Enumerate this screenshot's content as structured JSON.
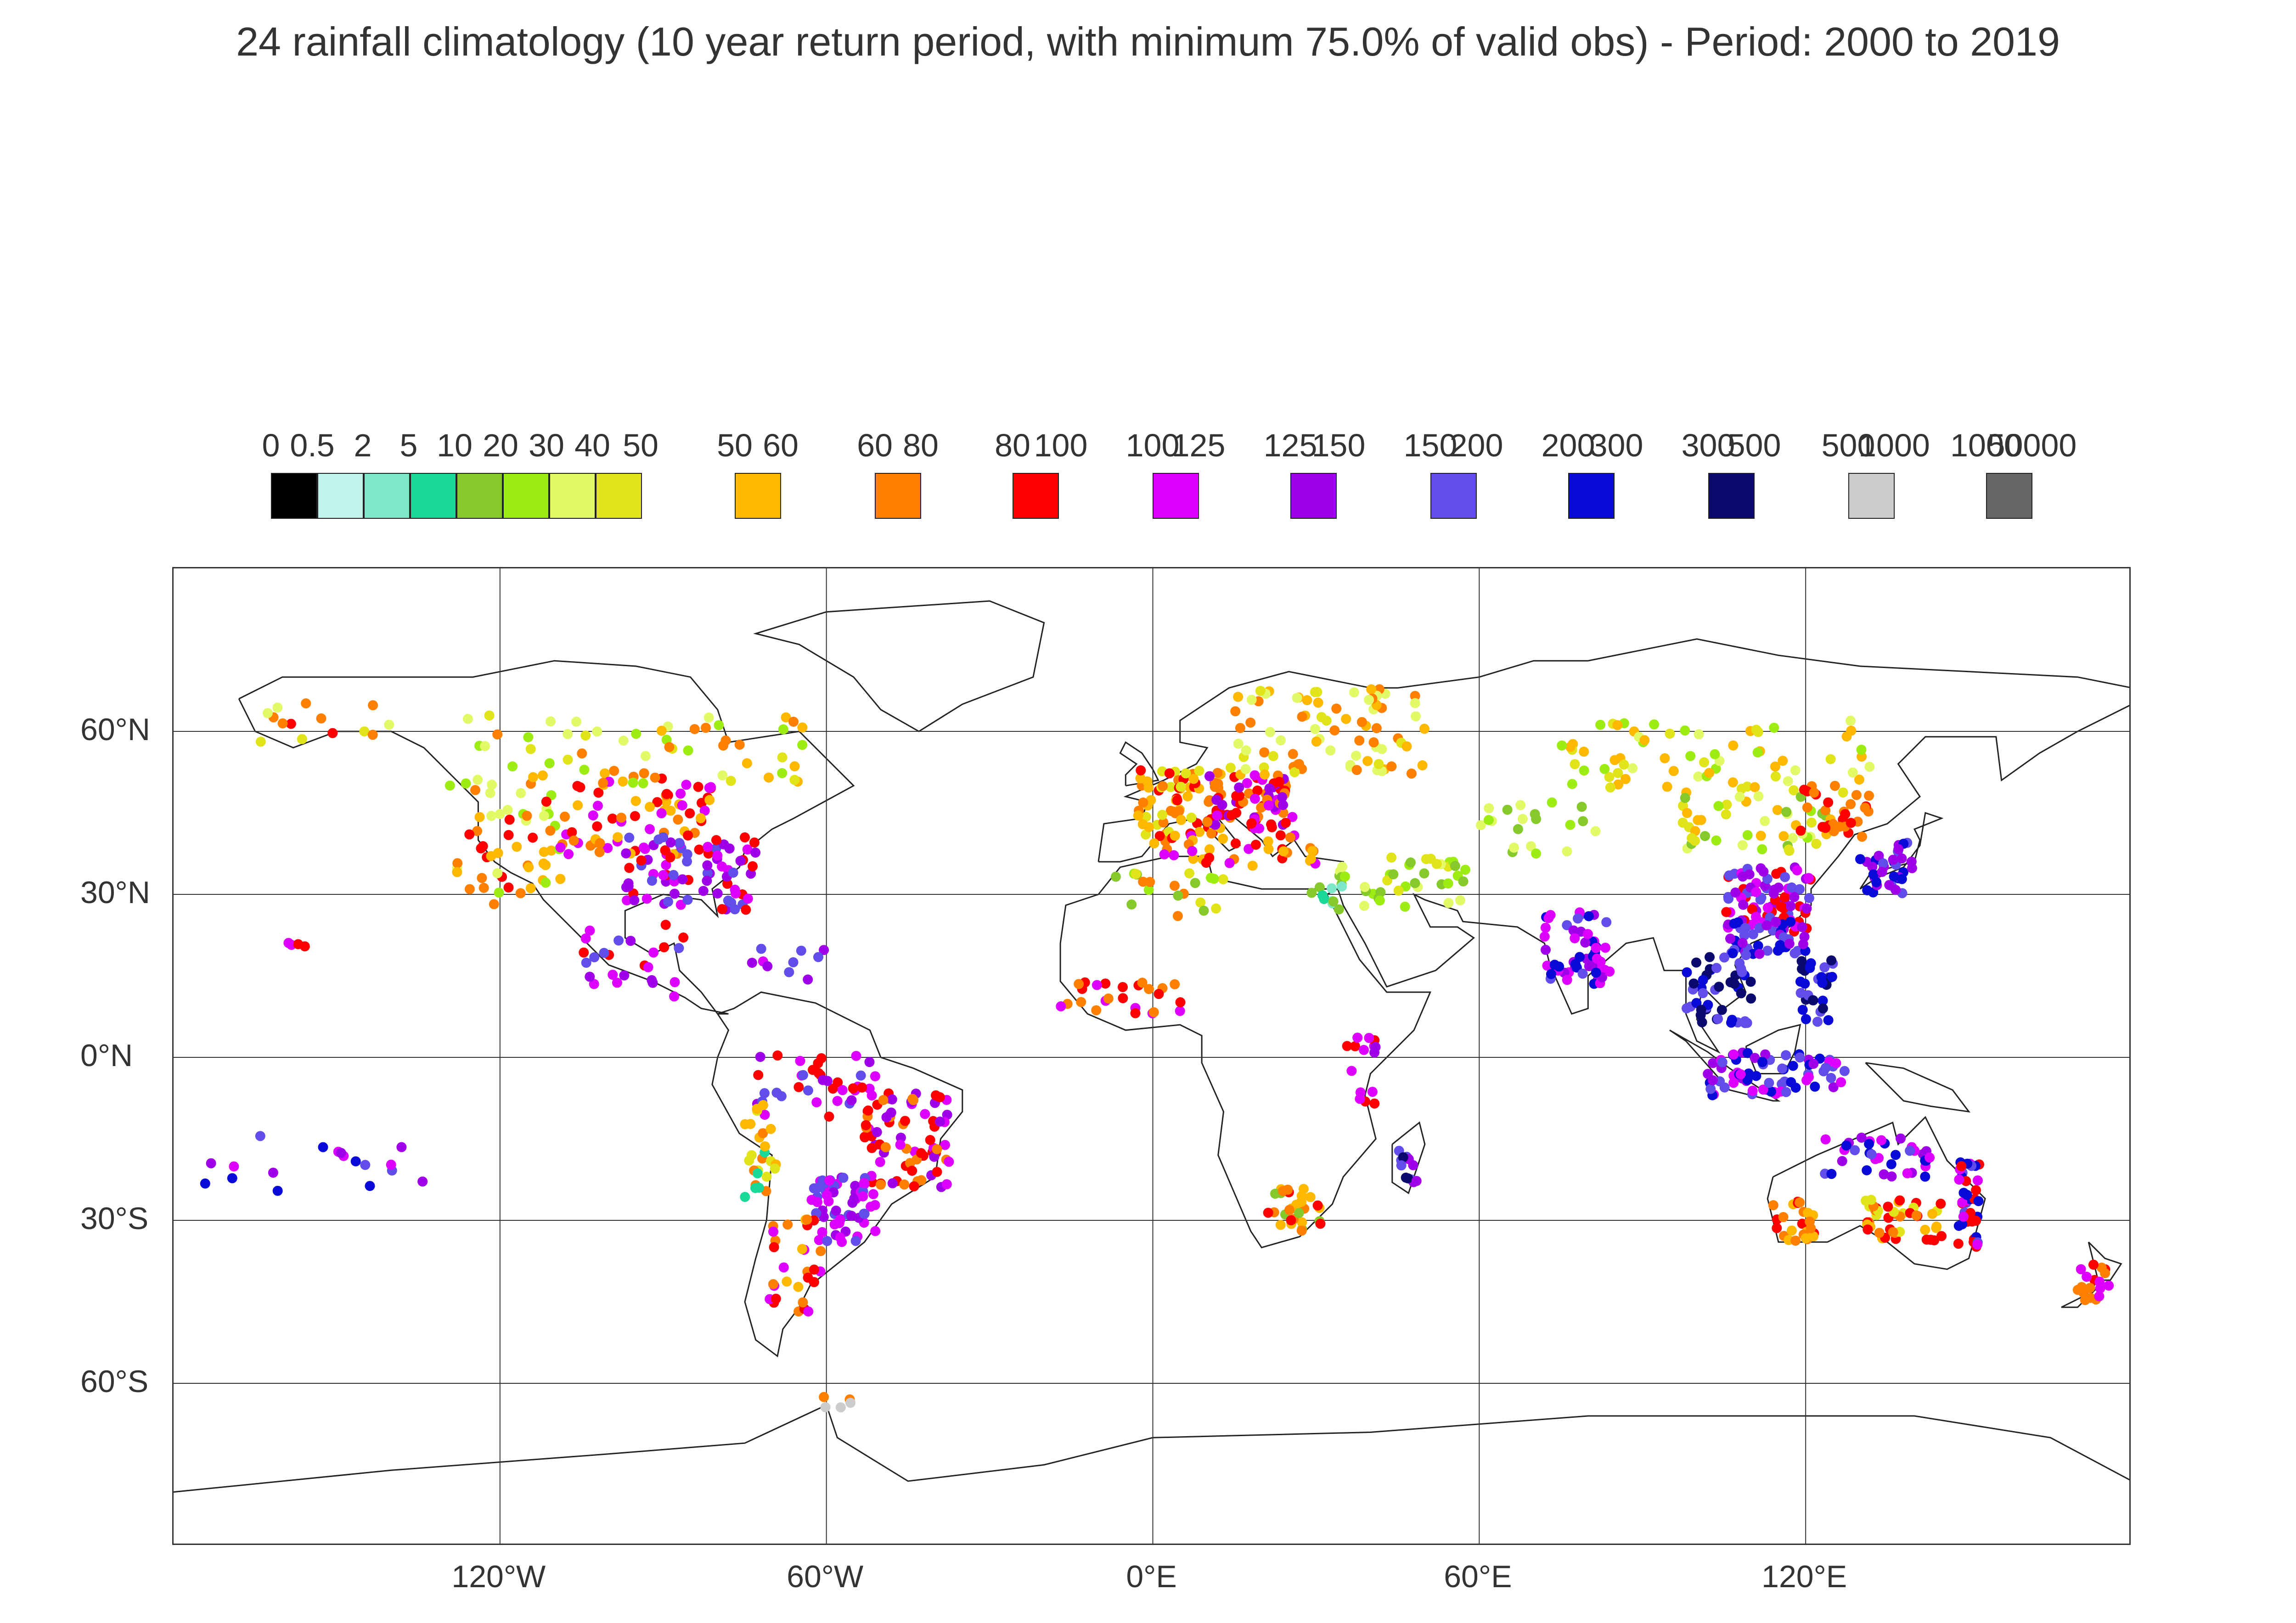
{
  "title": "24 rainfall climatology (10 year return period, with minimum 75.0% of valid obs) - Period: 2000 to 2019",
  "legend": {
    "labels": [
      "0",
      "0.5",
      "2",
      "5",
      "10",
      "20",
      "30",
      "40",
      "50",
      "50",
      "60",
      "60",
      "80",
      "80",
      "100",
      "100",
      "125",
      "125",
      "150",
      "150",
      "200",
      "200",
      "300",
      "300",
      "500",
      "500",
      "1000",
      "1000",
      "50000"
    ],
    "bins": [
      {
        "range": "0-0.5",
        "color": "#000000"
      },
      {
        "range": "0.5-2",
        "color": "#c2f3ea"
      },
      {
        "range": "2-5",
        "color": "#7de8c8"
      },
      {
        "range": "5-10",
        "color": "#18d89a"
      },
      {
        "range": "10-20",
        "color": "#85c92a"
      },
      {
        "range": "20-30",
        "color": "#9ded12"
      },
      {
        "range": "30-40",
        "color": "#e3f968"
      },
      {
        "range": "40-50",
        "color": "#e2e41a"
      },
      {
        "range": "50-60",
        "color": "#ffb800"
      },
      {
        "range": "60-80",
        "color": "#ff7f00"
      },
      {
        "range": "80-100",
        "color": "#ff0000"
      },
      {
        "range": "100-125",
        "color": "#dd00ff"
      },
      {
        "range": "125-150",
        "color": "#a000e8"
      },
      {
        "range": "150-200",
        "color": "#614de9"
      },
      {
        "range": "200-300",
        "color": "#0a0ad8"
      },
      {
        "range": "300-500",
        "color": "#0a0a6e"
      },
      {
        "range": "500-1000",
        "color": "#cccccc"
      },
      {
        "range": "1000-50000",
        "color": "#666666"
      }
    ]
  },
  "axes": {
    "lat_labels": [
      "60°N",
      "30°N",
      "0°N",
      "30°S",
      "60°S"
    ],
    "lon_labels": [
      "120°W",
      "60°W",
      "0°E",
      "60°E",
      "120°E"
    ],
    "lat_range": [
      -90,
      90
    ],
    "lon_range": [
      -180,
      180
    ],
    "gridlines": true
  },
  "regions": [
    {
      "name": "western North America",
      "lon": -118,
      "lat": 40,
      "dlon": 10,
      "dlat": 12,
      "n": 55,
      "colors": [
        "#9ded12",
        "#e3f968",
        "#ffb800",
        "#ff7f00",
        "#ff0000"
      ]
    },
    {
      "name": "central North America",
      "lon": -95,
      "lat": 45,
      "dlon": 14,
      "dlat": 8,
      "n": 70,
      "colors": [
        "#ff7f00",
        "#ff0000",
        "#ffb800",
        "#dd00ff"
      ]
    },
    {
      "name": "southeastern USA",
      "lon": -85,
      "lat": 34,
      "dlon": 12,
      "dlat": 7,
      "n": 80,
      "colors": [
        "#dd00ff",
        "#a000e8",
        "#614de9",
        "#ff0000"
      ]
    },
    {
      "name": "Canada",
      "lon": -95,
      "lat": 57,
      "dlon": 35,
      "dlat": 7,
      "n": 55,
      "colors": [
        "#e3f968",
        "#e2e41a",
        "#9ded12",
        "#ffb800",
        "#ff7f00"
      ]
    },
    {
      "name": "Alaska",
      "lon": -150,
      "lat": 62,
      "dlon": 14,
      "dlat": 4,
      "n": 14,
      "colors": [
        "#e2e41a",
        "#ff7f00",
        "#ff0000",
        "#e3f968"
      ]
    },
    {
      "name": "Mexico and Central America",
      "lon": -95,
      "lat": 18,
      "dlon": 10,
      "dlat": 7,
      "n": 25,
      "colors": [
        "#dd00ff",
        "#614de9",
        "#a000e8",
        "#ff0000"
      ]
    },
    {
      "name": "Caribbean",
      "lon": -68,
      "lat": 17,
      "dlon": 8,
      "dlat": 3,
      "n": 10,
      "colors": [
        "#dd00ff",
        "#a000e8",
        "#614de9"
      ]
    },
    {
      "name": "northern South America",
      "lon": -62,
      "lat": -5,
      "dlon": 12,
      "dlat": 6,
      "n": 40,
      "colors": [
        "#dd00ff",
        "#a000e8",
        "#ff0000",
        "#614de9"
      ]
    },
    {
      "name": "Brazil",
      "lon": -45,
      "lat": -15,
      "dlon": 8,
      "dlat": 9,
      "n": 75,
      "colors": [
        "#ff0000",
        "#dd00ff",
        "#a000e8",
        "#ff7f00"
      ]
    },
    {
      "name": "southern Brazil",
      "lon": -57,
      "lat": -28,
      "dlon": 6,
      "dlat": 6,
      "n": 60,
      "colors": [
        "#614de9",
        "#a000e8",
        "#dd00ff"
      ]
    },
    {
      "name": "Andes",
      "lon": -72,
      "lat": -17,
      "dlon": 3,
      "dlat": 9,
      "n": 25,
      "colors": [
        "#18d89a",
        "#ffb800",
        "#ff7f00",
        "#e2e41a"
      ]
    },
    {
      "name": "Argentina and Chile",
      "lon": -66,
      "lat": -38,
      "dlon": 5,
      "dlat": 9,
      "n": 30,
      "colors": [
        "#ff0000",
        "#ff7f00",
        "#ffb800",
        "#dd00ff"
      ]
    },
    {
      "name": "Western Europe",
      "lon": 5,
      "lat": 47,
      "dlon": 8,
      "dlat": 6,
      "n": 70,
      "colors": [
        "#ff7f00",
        "#ffb800",
        "#ff0000",
        "#e2e41a"
      ]
    },
    {
      "name": "Central Europe",
      "lon": 18,
      "lat": 47,
      "dlon": 8,
      "dlat": 5,
      "n": 80,
      "colors": [
        "#ff0000",
        "#ff7f00",
        "#dd00ff",
        "#a000e8"
      ]
    },
    {
      "name": "Scandinavia and Russia",
      "lon": 32,
      "lat": 60,
      "dlon": 18,
      "dlat": 8,
      "n": 80,
      "colors": [
        "#ffb800",
        "#e2e41a",
        "#e3f968",
        "#ff7f00"
      ]
    },
    {
      "name": "Mediterranean",
      "lon": 15,
      "lat": 38,
      "dlon": 15,
      "dlat": 3,
      "n": 40,
      "colors": [
        "#ff0000",
        "#ff7f00",
        "#dd00ff",
        "#ffb800"
      ]
    },
    {
      "name": "North Africa",
      "lon": 2,
      "lat": 30,
      "dlon": 12,
      "dlat": 4,
      "n": 20,
      "colors": [
        "#85c92a",
        "#9ded12",
        "#e2e41a",
        "#ff7f00"
      ]
    },
    {
      "name": "Middle East",
      "lon": 45,
      "lat": 32,
      "dlon": 13,
      "dlat": 5,
      "n": 40,
      "colors": [
        "#9ded12",
        "#85c92a",
        "#e3f968",
        "#e2e41a"
      ]
    },
    {
      "name": "Egypt and Levant",
      "lon": 32,
      "lat": 29,
      "dlon": 3,
      "dlat": 3,
      "n": 10,
      "colors": [
        "#18d89a",
        "#7de8c8",
        "#85c92a"
      ]
    },
    {
      "name": "West Africa",
      "lon": -5,
      "lat": 11,
      "dlon": 12,
      "dlat": 3,
      "n": 25,
      "colors": [
        "#ff0000",
        "#dd00ff",
        "#ff7f00"
      ]
    },
    {
      "name": "East Africa",
      "lon": 38,
      "lat": -3,
      "dlon": 3,
      "dlat": 7,
      "n": 15,
      "colors": [
        "#dd00ff",
        "#ff0000",
        "#a000e8"
      ]
    },
    {
      "name": "Southern Africa",
      "lon": 26,
      "lat": -28,
      "dlon": 5,
      "dlat": 4,
      "n": 30,
      "colors": [
        "#ff7f00",
        "#ff0000",
        "#ffb800",
        "#85c92a"
      ]
    },
    {
      "name": "Madagascar",
      "lon": 47,
      "lat": -19,
      "dlon": 2,
      "dlat": 4,
      "n": 12,
      "colors": [
        "#614de9",
        "#a000e8",
        "#0a0a6e"
      ]
    },
    {
      "name": "Central Asia",
      "lon": 70,
      "lat": 42,
      "dlon": 12,
      "dlat": 5,
      "n": 20,
      "colors": [
        "#9ded12",
        "#85c92a",
        "#e3f968"
      ]
    },
    {
      "name": "India",
      "lon": 78,
      "lat": 20,
      "dlon": 6,
      "dlat": 7,
      "n": 55,
      "colors": [
        "#dd00ff",
        "#a000e8",
        "#614de9",
        "#0a0ad8"
      ]
    },
    {
      "name": "Siberia",
      "lon": 105,
      "lat": 55,
      "dlon": 30,
      "dlat": 7,
      "n": 70,
      "colors": [
        "#e3f968",
        "#e2e41a",
        "#9ded12",
        "#ffb800"
      ]
    },
    {
      "name": "Mongolia and North China",
      "lon": 110,
      "lat": 43,
      "dlon": 15,
      "dlat": 5,
      "n": 45,
      "colors": [
        "#e3f968",
        "#e2e41a",
        "#85c92a",
        "#9ded12",
        "#ffb800"
      ]
    },
    {
      "name": "Manchuria",
      "lon": 125,
      "lat": 45,
      "dlon": 7,
      "dlat": 5,
      "n": 30,
      "colors": [
        "#ff0000",
        "#ff7f00"
      ]
    },
    {
      "name": "Eastern China",
      "lon": 113,
      "lat": 29,
      "dlon": 8,
      "dlat": 6,
      "n": 90,
      "colors": [
        "#a000e8",
        "#614de9",
        "#ff0000",
        "#dd00ff"
      ]
    },
    {
      "name": "Southern China",
      "lon": 113,
      "lat": 22,
      "dlon": 7,
      "dlat": 3,
      "n": 40,
      "colors": [
        "#0a0ad8",
        "#614de9",
        "#a000e8"
      ]
    },
    {
      "name": "Japan and Korea",
      "lon": 135,
      "lat": 35,
      "dlon": 5,
      "dlat": 5,
      "n": 35,
      "colors": [
        "#0a0ad8",
        "#614de9",
        "#a000e8"
      ]
    },
    {
      "name": "Southeast Asia",
      "lon": 104,
      "lat": 13,
      "dlon": 6,
      "dlat": 7,
      "n": 45,
      "colors": [
        "#614de9",
        "#0a0ad8",
        "#0a0a6e"
      ]
    },
    {
      "name": "Philippines",
      "lon": 122,
      "lat": 12,
      "dlon": 3,
      "dlat": 6,
      "n": 30,
      "colors": [
        "#0a0a6e",
        "#0a0ad8",
        "#614de9"
      ]
    },
    {
      "name": "Indonesia",
      "lon": 115,
      "lat": -3,
      "dlon": 13,
      "dlat": 4,
      "n": 70,
      "colors": [
        "#614de9",
        "#0a0ad8",
        "#dd00ff",
        "#a000e8"
      ]
    },
    {
      "name": "Northern Australia",
      "lon": 133,
      "lat": -18,
      "dlon": 10,
      "dlat": 4,
      "n": 35,
      "colors": [
        "#614de9",
        "#a000e8",
        "#dd00ff",
        "#0a0ad8"
      ]
    },
    {
      "name": "Western Australia",
      "lon": 118,
      "lat": -30,
      "dlon": 4,
      "dlat": 4,
      "n": 25,
      "colors": [
        "#ff7f00",
        "#ff0000",
        "#ffb800"
      ]
    },
    {
      "name": "Southern and Central Australia",
      "lon": 138,
      "lat": -30,
      "dlon": 7,
      "dlat": 4,
      "n": 45,
      "colors": [
        "#ffb800",
        "#ff7f00",
        "#e2e41a",
        "#ff0000"
      ]
    },
    {
      "name": "Eastern Australia",
      "lon": 150,
      "lat": -27,
      "dlon": 2,
      "dlat": 8,
      "n": 40,
      "colors": [
        "#614de9",
        "#0a0ad8",
        "#ff0000",
        "#dd00ff"
      ]
    },
    {
      "name": "New Zealand",
      "lon": 173,
      "lat": -41,
      "dlon": 3,
      "dlat": 4,
      "n": 18,
      "colors": [
        "#ff0000",
        "#ff7f00",
        "#dd00ff"
      ]
    },
    {
      "name": "Pacific Islands",
      "lon": -150,
      "lat": -20,
      "dlon": 25,
      "dlat": 6,
      "n": 18,
      "colors": [
        "#614de9",
        "#dd00ff",
        "#0a0ad8",
        "#a000e8"
      ]
    },
    {
      "name": "Hawaii",
      "lon": -157,
      "lat": 21,
      "dlon": 2,
      "dlat": 1,
      "n": 4,
      "colors": [
        "#ff0000",
        "#dd00ff"
      ]
    },
    {
      "name": "Antarctica",
      "lon": -58,
      "lat": -63,
      "dlon": 3,
      "dlat": 1.5,
      "n": 5,
      "colors": [
        "#ff7f00",
        "#ffb800",
        "#cccccc"
      ]
    }
  ]
}
